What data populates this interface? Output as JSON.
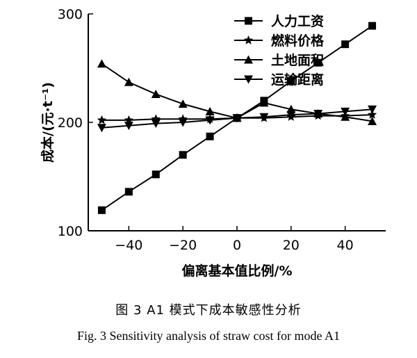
{
  "chart_data": {
    "type": "line",
    "xlabel": "偏离基本值比例/%",
    "ylabel": "成本/(元·t⁻¹)",
    "xlim": [
      -55,
      55
    ],
    "ylim": [
      100,
      300
    ],
    "xticks": [
      -40,
      -20,
      0,
      20,
      40
    ],
    "yticks": [
      100,
      200,
      300
    ],
    "x": [
      -50,
      -40,
      -30,
      -20,
      -10,
      0,
      10,
      20,
      30,
      40,
      50
    ],
    "legend_position": "top-right",
    "grid": false,
    "series": [
      {
        "name": "人力工资",
        "marker": "square",
        "values": [
          119,
          136,
          152,
          170,
          187,
          204,
          220,
          238,
          255,
          272,
          289
        ]
      },
      {
        "name": "燃料价格",
        "marker": "star",
        "values": [
          202,
          202,
          203,
          203,
          203,
          204,
          204,
          205,
          206,
          206,
          207
        ]
      },
      {
        "name": "土地面积",
        "marker": "triangle-up",
        "values": [
          254,
          237,
          226,
          217,
          210,
          204,
          218,
          212,
          208,
          205,
          201
        ]
      },
      {
        "name": "运输距离",
        "marker": "triangle-down",
        "values": [
          195,
          197,
          199,
          200,
          202,
          204,
          205,
          207,
          208,
          210,
          212
        ]
      }
    ]
  },
  "figure": {
    "caption_cn": "图 3   A1 模式下成本敏感性分析",
    "caption_en": "Fig. 3   Sensitivity analysis of straw cost for mode A1"
  }
}
